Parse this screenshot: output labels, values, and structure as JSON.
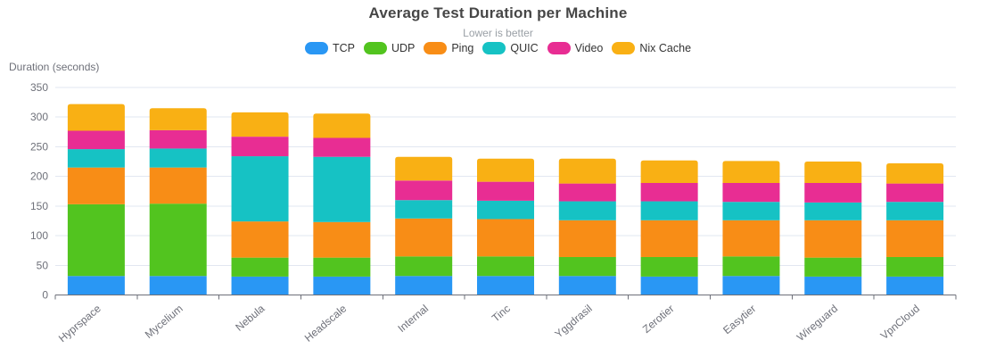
{
  "chart_data": {
    "type": "bar",
    "stacked": true,
    "title": "Average Test Duration per Machine",
    "subtitle": "Lower is better",
    "ylabel": "Duration (seconds)",
    "xlabel": "",
    "ylim": [
      0,
      350
    ],
    "yticks": [
      0,
      50,
      100,
      150,
      200,
      250,
      300,
      350
    ],
    "grid": true,
    "legend_position": "top",
    "categories": [
      "Hyprspace",
      "Mycelium",
      "Nebula",
      "Headscale",
      "Internal",
      "Tinc",
      "Yggdrasil",
      "Zerotier",
      "Easytier",
      "Wireguard",
      "VpnCloud"
    ],
    "series": [
      {
        "name": "TCP",
        "color": "#2997F4",
        "values": [
          32,
          32,
          31,
          31,
          32,
          32,
          32,
          31,
          32,
          31,
          31
        ]
      },
      {
        "name": "UDP",
        "color": "#52C41F",
        "values": [
          121,
          122,
          32,
          32,
          33,
          33,
          32,
          33,
          33,
          32,
          33
        ]
      },
      {
        "name": "Ping",
        "color": "#F88D16",
        "values": [
          62,
          61,
          61,
          60,
          64,
          63,
          62,
          62,
          61,
          63,
          62
        ]
      },
      {
        "name": "QUIC",
        "color": "#16C2C4",
        "values": [
          31,
          32,
          110,
          110,
          31,
          31,
          32,
          32,
          31,
          30,
          31
        ]
      },
      {
        "name": "Video",
        "color": "#E82D93",
        "values": [
          31,
          31,
          33,
          32,
          33,
          32,
          30,
          31,
          32,
          33,
          31
        ]
      },
      {
        "name": "Nix Cache",
        "color": "#F9B014",
        "values": [
          45,
          37,
          41,
          41,
          40,
          39,
          42,
          38,
          37,
          36,
          34
        ]
      }
    ]
  },
  "colors": {
    "title": "#464646",
    "subtitle": "#9aa0a6",
    "axis_text": "#6E7079",
    "axis_line": "#6E7079",
    "grid_line": "#E2E7F1",
    "legend_text": "#333333",
    "background": "#ffffff"
  }
}
